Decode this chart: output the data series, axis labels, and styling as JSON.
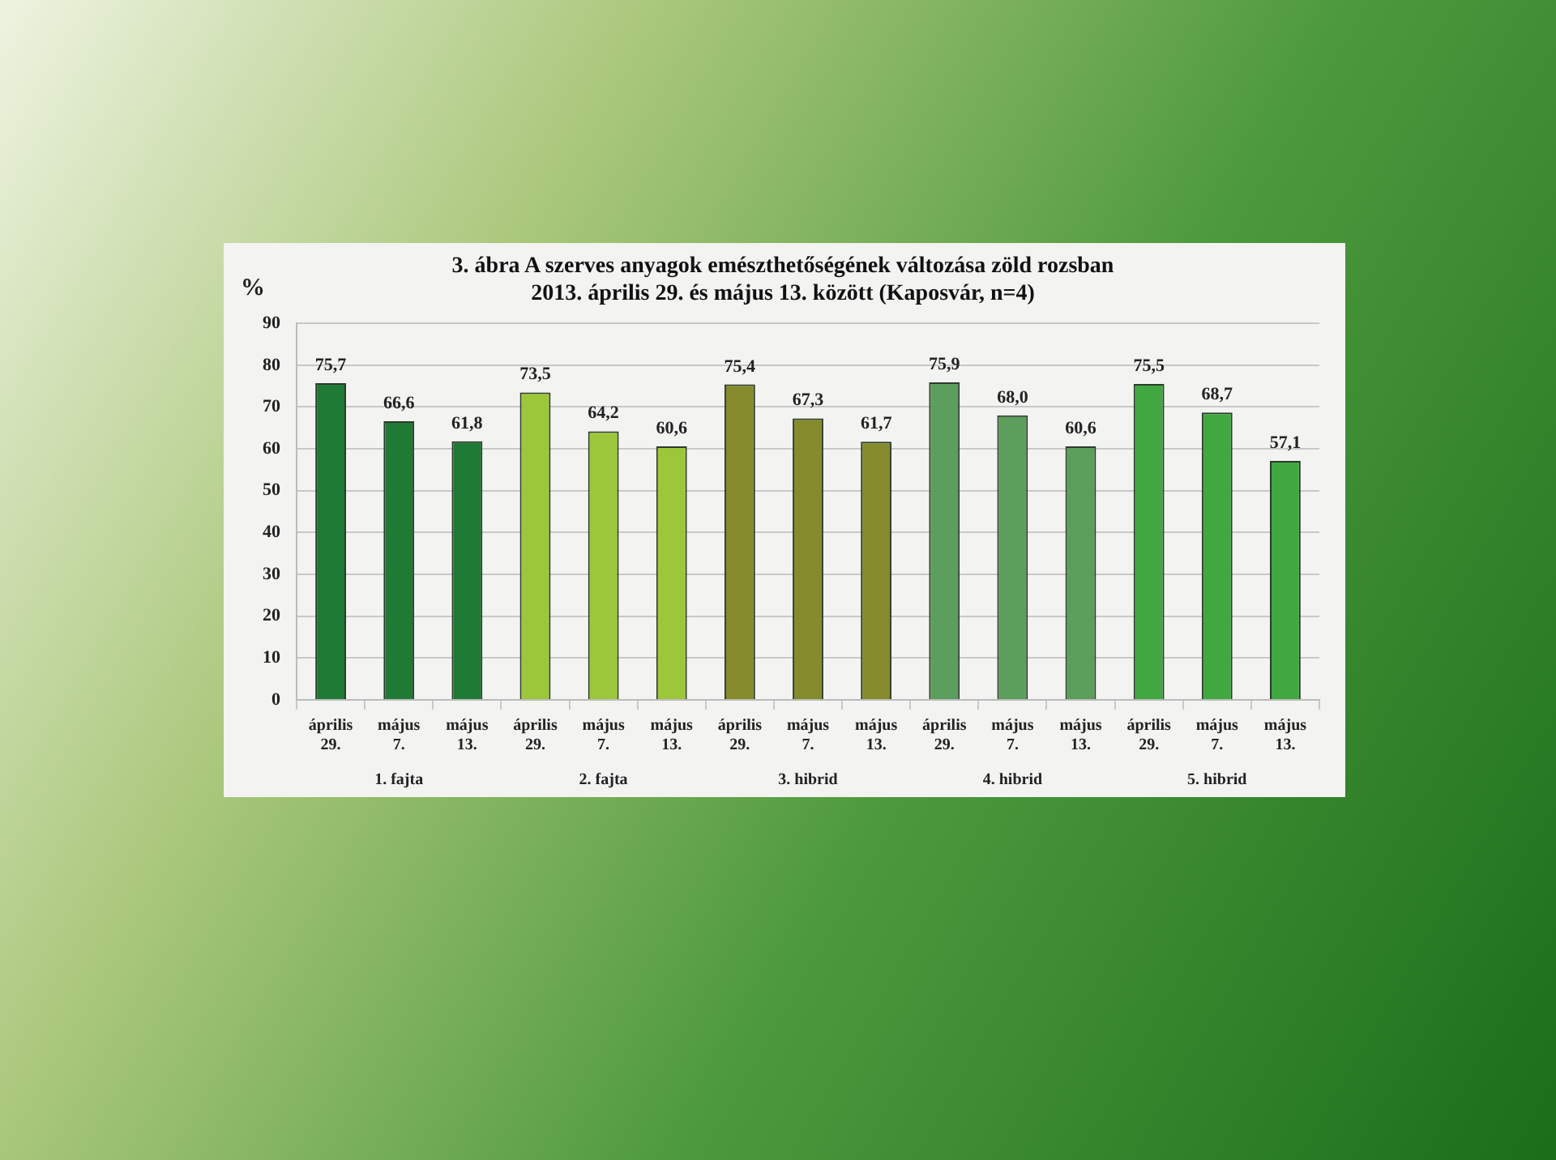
{
  "chart_data": {
    "type": "bar",
    "title": "3. ábra A szerves anyagok emészthetőségének változása zöld rozsban",
    "subtitle": "2013. április 29. és május 13. között (Kaposvár, n=4)",
    "ylabel": "%",
    "categories": [
      "április 29.",
      "május 7.",
      "május 13.",
      "április 29.",
      "május 7.",
      "május 13.",
      "április 29.",
      "május 7.",
      "május 13.",
      "április 29.",
      "május 7.",
      "május 13.",
      "április 29.",
      "május 7.",
      "május 13."
    ],
    "values": [
      75.7,
      66.6,
      61.8,
      73.5,
      64.2,
      60.6,
      75.4,
      67.3,
      61.7,
      75.9,
      68.0,
      60.6,
      75.5,
      68.7,
      57.1
    ],
    "value_labels": [
      "75,7",
      "66,6",
      "61,8",
      "73,5",
      "64,2",
      "60,6",
      "75,4",
      "67,3",
      "61,7",
      "75,9",
      "68,0",
      "60,6",
      "75,5",
      "68,7",
      "57,1"
    ],
    "colors": [
      "#1f7a35",
      "#1f7a35",
      "#1f7a35",
      "#9dc73a",
      "#9dc73a",
      "#9dc73a",
      "#858a2c",
      "#858a2c",
      "#858a2c",
      "#5c9e5c",
      "#5c9e5c",
      "#5c9e5c",
      "#41a841",
      "#41a841",
      "#41a841"
    ],
    "annotations": [
      "1. fajta",
      "2. fajta",
      "3. hibrid",
      "4. hibrid",
      "5. hibrid"
    ],
    "ylim": [
      0,
      90
    ],
    "yticks": [
      0,
      10,
      20,
      30,
      40,
      50,
      60,
      70,
      80,
      90
    ],
    "grid": "y",
    "legend": false
  }
}
